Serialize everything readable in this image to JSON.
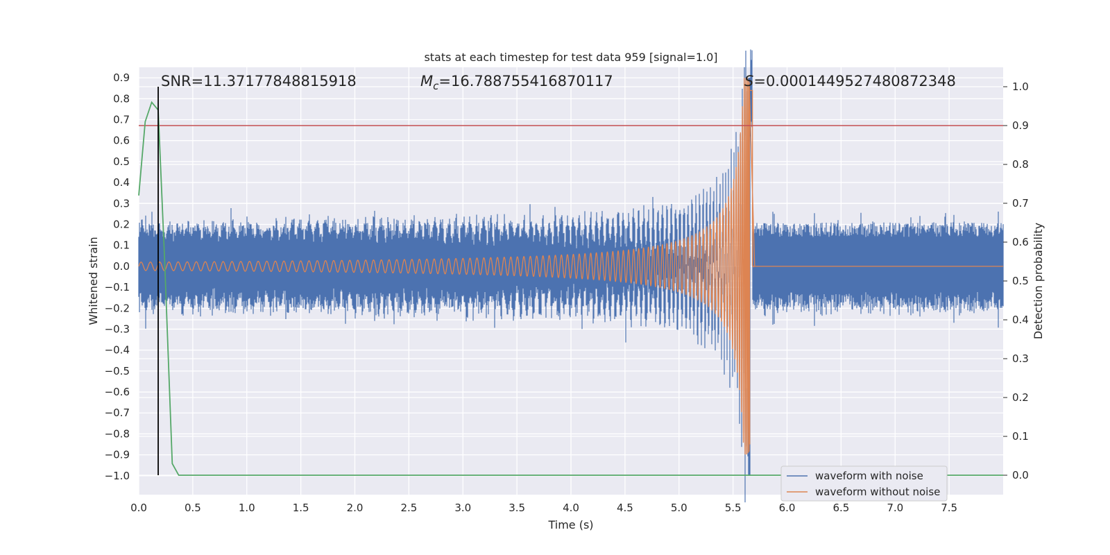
{
  "chart_data": {
    "type": "line",
    "title": "stats at each timestep for test data 959 [signal=1.0]",
    "xlabel": "Time (s)",
    "ylabel_left": "Whitened strain",
    "ylabel_right": "Detection probability",
    "xlim": [
      0.0,
      8.0
    ],
    "ylim_left": [
      -1.09,
      0.95
    ],
    "ylim_right": [
      -0.05,
      1.05
    ],
    "x_ticks": [
      "0.0",
      "0.5",
      "1.0",
      "1.5",
      "2.0",
      "2.5",
      "3.0",
      "3.5",
      "4.0",
      "4.5",
      "5.0",
      "5.5",
      "6.0",
      "6.5",
      "7.0",
      "7.5"
    ],
    "y_ticks_left": [
      "0.9",
      "0.8",
      "0.7",
      "0.6",
      "0.5",
      "0.4",
      "0.3",
      "0.2",
      "0.1",
      "0.0",
      "−0.1",
      "−0.2",
      "−0.3",
      "−0.4",
      "−0.5",
      "−0.6",
      "−0.7",
      "−0.8",
      "−0.9",
      "−1.0"
    ],
    "y_ticks_right": [
      "1.0",
      "0.9",
      "0.8",
      "0.7",
      "0.6",
      "0.5",
      "0.4",
      "0.3",
      "0.2",
      "0.1",
      "0.0"
    ],
    "annotations": {
      "snr": "SNR=11.37177848815918",
      "mc_symbol": "M",
      "mc_sub": "c",
      "mc_value": "=16.788755416870117",
      "s_symbol": "S",
      "s_value": "=0.0001449527480872348"
    },
    "series": [
      {
        "name": "waveform with noise",
        "color": "#4c72b0",
        "noise_amplitude": 0.2,
        "merger_time": 5.65,
        "merger_peak": 0.9,
        "merger_trough": -1.0
      },
      {
        "name": "waveform without noise",
        "color": "#dd8452",
        "start_amplitude": 0.02,
        "merger_time": 5.65,
        "merger_peak": 0.88,
        "merger_trough": -0.85
      }
    ],
    "detection_probability": {
      "color": "#55a868",
      "x": [
        0.0,
        0.06,
        0.12,
        0.18,
        0.24,
        0.31,
        0.37,
        8.0
      ],
      "y": [
        0.72,
        0.91,
        0.96,
        0.94,
        0.55,
        0.03,
        0.0,
        0.0
      ]
    },
    "threshold": {
      "value": 0.9,
      "axis": "right",
      "color": "#c44e52"
    },
    "vertical_marker": {
      "x": 0.18,
      "color": "#000000"
    },
    "legend": {
      "location": "lower right",
      "entries": [
        "waveform with noise",
        "waveform without noise"
      ]
    }
  }
}
